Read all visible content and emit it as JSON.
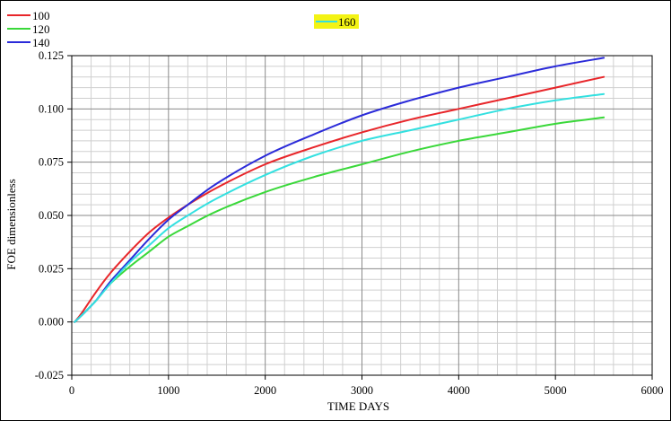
{
  "chart_data": {
    "type": "line",
    "title": "",
    "xlabel": "TIME DAYS",
    "ylabel": "FOE dimensionless",
    "xlim": [
      0,
      6000
    ],
    "ylim": [
      -0.025,
      0.125
    ],
    "xticks": [
      0,
      1000,
      2000,
      3000,
      4000,
      5000,
      6000
    ],
    "yticks": [
      -0.025,
      0.0,
      0.025,
      0.05,
      0.075,
      0.1,
      0.125
    ],
    "xtick_labels": [
      "0",
      "1000",
      "2000",
      "3000",
      "4000",
      "5000",
      "6000"
    ],
    "ytick_labels": [
      "-0.025",
      "0.000",
      "0.025",
      "0.050",
      "0.075",
      "0.100",
      "0.125"
    ],
    "grid": true,
    "legend_position": "top-left",
    "series": [
      {
        "name": "100",
        "color": "#e8262a",
        "x": [
          30,
          100,
          250,
          400,
          600,
          800,
          1000,
          1200,
          1500,
          2000,
          2500,
          3000,
          3500,
          4000,
          4500,
          5000,
          5500
        ],
        "y": [
          0.0,
          0.004,
          0.014,
          0.023,
          0.033,
          0.042,
          0.049,
          0.055,
          0.063,
          0.074,
          0.082,
          0.089,
          0.095,
          0.1,
          0.105,
          0.11,
          0.115
        ]
      },
      {
        "name": "120",
        "color": "#3ad83a",
        "x": [
          30,
          100,
          250,
          400,
          600,
          800,
          1000,
          1200,
          1500,
          2000,
          2500,
          3000,
          3500,
          4000,
          4500,
          5000,
          5500
        ],
        "y": [
          0.0,
          0.003,
          0.01,
          0.018,
          0.026,
          0.033,
          0.04,
          0.045,
          0.052,
          0.061,
          0.068,
          0.074,
          0.08,
          0.085,
          0.089,
          0.093,
          0.096
        ]
      },
      {
        "name": "140",
        "color": "#2b2bd9",
        "x": [
          30,
          100,
          250,
          400,
          600,
          800,
          1000,
          1200,
          1500,
          2000,
          2500,
          3000,
          3500,
          4000,
          4500,
          5000,
          5500
        ],
        "y": [
          0.0,
          0.003,
          0.01,
          0.019,
          0.029,
          0.039,
          0.048,
          0.055,
          0.065,
          0.078,
          0.088,
          0.097,
          0.104,
          0.11,
          0.115,
          0.12,
          0.124
        ]
      },
      {
        "name": "160",
        "color": "#33e0e0",
        "x": [
          30,
          100,
          250,
          400,
          600,
          800,
          1000,
          1200,
          1500,
          2000,
          2500,
          3000,
          3500,
          4000,
          4500,
          5000,
          5500
        ],
        "y": [
          0.0,
          0.003,
          0.01,
          0.018,
          0.028,
          0.036,
          0.044,
          0.05,
          0.058,
          0.069,
          0.078,
          0.085,
          0.09,
          0.095,
          0.1,
          0.104,
          0.107
        ]
      }
    ],
    "legend_highlight": {
      "series": "160",
      "background": "#f3f314"
    }
  }
}
